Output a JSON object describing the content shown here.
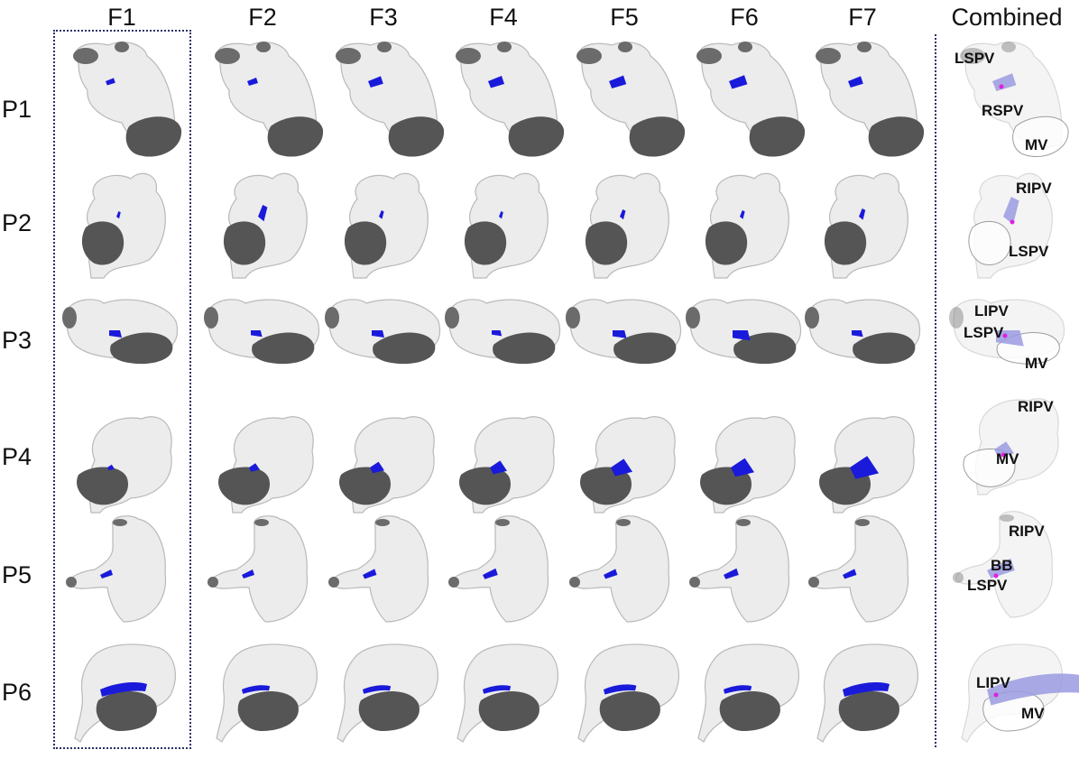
{
  "columns": [
    "F1",
    "F2",
    "F3",
    "F4",
    "F5",
    "F6",
    "F7",
    "Combined"
  ],
  "rows": [
    "P1",
    "P2",
    "P3",
    "P4",
    "P5",
    "P6"
  ],
  "combined_labels": {
    "P1": [
      "LSPV",
      "RSPV",
      "MV"
    ],
    "P2": [
      "RIPV",
      "LSPV"
    ],
    "P3": [
      "LIPV",
      "LSPV",
      "MV"
    ],
    "P4": [
      "RIPV",
      "MV"
    ],
    "P5": [
      "RIPV",
      "BB",
      "LSPV"
    ],
    "P6": [
      "LIPV",
      "MV"
    ]
  },
  "colors": {
    "atrium_fill": "#ececec",
    "atrium_stroke": "#b9b9b9",
    "valve": "#555555",
    "vein_cap": "#6b6b6b",
    "lesion": "#1a1adb",
    "combined_lesion": "#9a9ae0",
    "combined_point": "#e020e0"
  }
}
